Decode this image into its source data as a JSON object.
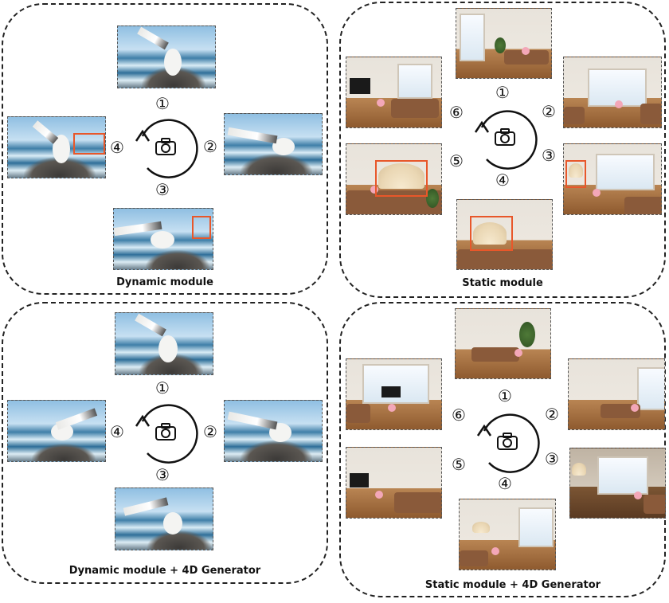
{
  "panels": {
    "top_left": {
      "caption": "Dynamic module"
    },
    "top_right": {
      "caption": "Static module"
    },
    "bottom_left": {
      "caption": "Dynamic module + 4D Generator"
    },
    "bottom_right": {
      "caption": "Static module + 4D Generator"
    }
  },
  "numbers": {
    "n1": "①",
    "n2": "②",
    "n3": "③",
    "n4": "④",
    "n5": "⑤",
    "n6": "⑥"
  },
  "colors": {
    "highlight": "#e8572a",
    "border": "#222222"
  },
  "icons": {
    "camera": "camera-icon",
    "cycle_arrow": "cycle-arrow-icon"
  }
}
